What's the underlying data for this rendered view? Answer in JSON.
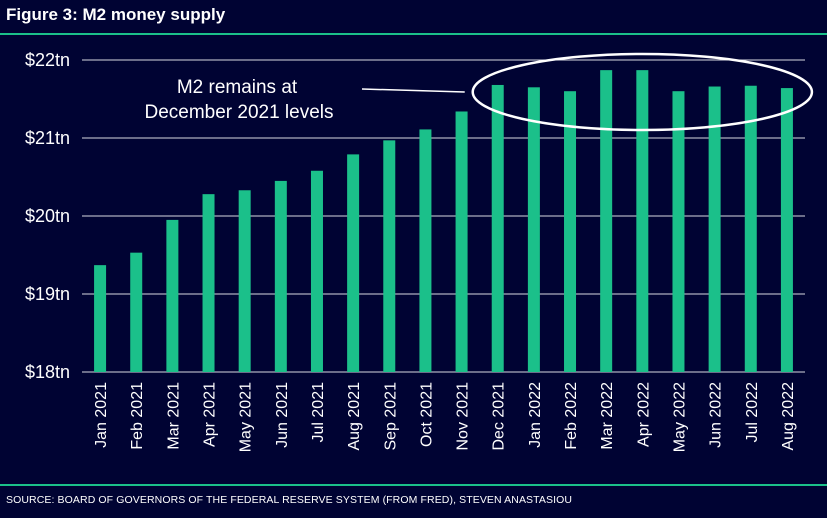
{
  "figure": {
    "title": "Figure 3: M2 money supply",
    "source": "SOURCE: BOARD OF GOVERNORS OF THE FEDERAL RESERVE SYSTEM (FROM FRED), STEVEN ANASTASIOU"
  },
  "colors": {
    "background": "#000333",
    "bar": "#1bc08a",
    "accent_rule": "#1bc08a",
    "gridline": "#ffffff",
    "text": "#ffffff"
  },
  "chart_data": {
    "type": "bar",
    "categories": [
      "Jan 2021",
      "Feb 2021",
      "Mar 2021",
      "Apr 2021",
      "May 2021",
      "Jun 2021",
      "Jul 2021",
      "Aug 2021",
      "Sep 2021",
      "Oct 2021",
      "Nov 2021",
      "Dec 2021",
      "Jan 2022",
      "Feb 2022",
      "Mar 2022",
      "Apr 2022",
      "May 2022",
      "Jun 2022",
      "Jul 2022",
      "Aug 2022"
    ],
    "values": [
      19.37,
      19.53,
      19.95,
      20.28,
      20.33,
      20.45,
      20.58,
      20.79,
      20.97,
      21.11,
      21.34,
      21.68,
      21.65,
      21.6,
      21.87,
      21.87,
      21.6,
      21.66,
      21.67,
      21.64
    ],
    "yticks": [
      18,
      19,
      20,
      21,
      22
    ],
    "ytick_labels": [
      "$18tn",
      "$19tn",
      "$20tn",
      "$21tn",
      "$22tn"
    ],
    "ylim": [
      18,
      22
    ],
    "grid": true,
    "annotation": {
      "lines": [
        "M2 remains at",
        "December 2021 levels"
      ],
      "highlight_from": "Dec 2021",
      "highlight_to": "Aug 2022"
    }
  }
}
